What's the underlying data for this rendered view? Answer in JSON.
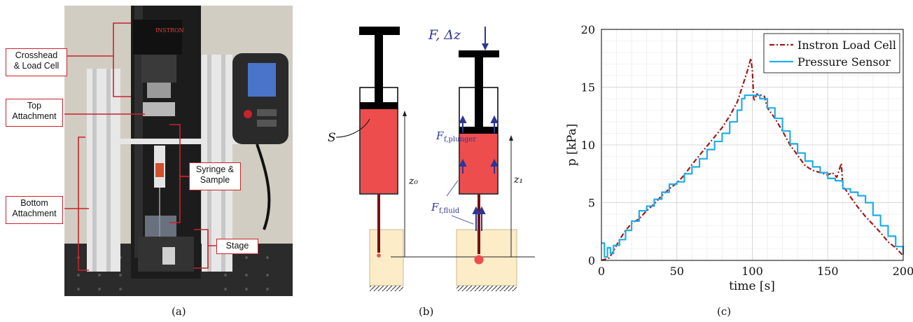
{
  "panel_a": {
    "labels": {
      "crosshead": [
        "Crosshead",
        "& Load Cell"
      ],
      "top": [
        "Top",
        "Attachment"
      ],
      "syringe": [
        "Syringe &",
        "Sample"
      ],
      "bottom": [
        "Bottom",
        "Attachment"
      ],
      "stage": "Stage"
    },
    "brand": "INSTRON",
    "caption": "(a)"
  },
  "panel_b": {
    "force_label": "F, Δz",
    "s_label": "S",
    "z0": "z₀",
    "z1": "z₁",
    "f_plunger": "F",
    "f_plunger_sub": "f,plunger",
    "f_fluid": "F",
    "f_fluid_sub": "f,fluid",
    "caption": "(b)"
  },
  "panel_c": {
    "caption": "(c)"
  },
  "chart_data": {
    "type": "line",
    "xlabel": "time [s]",
    "ylabel": "p [kPa]",
    "xlim": [
      0,
      200
    ],
    "ylim": [
      0,
      20
    ],
    "xticks": [
      0,
      50,
      100,
      150,
      200
    ],
    "yticks": [
      0,
      5,
      10,
      15,
      20
    ],
    "grid": true,
    "legend": "top-right",
    "series": [
      {
        "name": "Instron Load Cell",
        "color": "#a01919",
        "style": "dash-dot",
        "x": [
          0,
          5,
          8,
          12,
          16,
          20,
          25,
          30,
          35,
          40,
          45,
          50,
          55,
          60,
          65,
          70,
          75,
          80,
          85,
          90,
          93,
          96,
          98,
          99,
          100,
          101,
          103,
          106,
          108,
          110,
          115,
          120,
          125,
          130,
          135,
          140,
          145,
          150,
          153,
          156,
          158,
          159,
          160,
          162,
          165,
          170,
          175,
          180,
          185,
          190,
          195,
          200
        ],
        "y": [
          0,
          0.2,
          0.8,
          1.8,
          2.6,
          3.2,
          3.6,
          4.3,
          4.9,
          5.6,
          6.2,
          6.7,
          7.4,
          8.3,
          9.1,
          9.9,
          10.7,
          11.5,
          12.5,
          13.7,
          14.9,
          16.1,
          17.0,
          17.5,
          16.5,
          13.8,
          14.4,
          14.3,
          14.2,
          13.2,
          12.3,
          11.2,
          10.0,
          9.1,
          8.2,
          7.8,
          7.6,
          7.4,
          7.6,
          7.2,
          8.0,
          8.4,
          6.4,
          6.1,
          5.5,
          4.6,
          3.8,
          3.1,
          2.4,
          1.6,
          1.1,
          0.4
        ]
      },
      {
        "name": "Pressure Sensor",
        "color": "#1eaee8",
        "style": "solid",
        "x": [
          0,
          2,
          4,
          6,
          8,
          12,
          16,
          20,
          25,
          30,
          35,
          40,
          45,
          50,
          55,
          60,
          65,
          70,
          75,
          80,
          85,
          90,
          93,
          95,
          100,
          105,
          110,
          115,
          120,
          125,
          130,
          135,
          140,
          145,
          150,
          155,
          160,
          165,
          170,
          175,
          180,
          185,
          190,
          195,
          200
        ],
        "y": [
          1.5,
          0.3,
          1.1,
          0.6,
          1.3,
          1.8,
          2.6,
          3.4,
          4.3,
          4.7,
          5.3,
          5.9,
          6.6,
          6.8,
          7.5,
          8.1,
          8.8,
          9.6,
          10.3,
          11.0,
          12.0,
          13.0,
          14.0,
          14.3,
          14.3,
          14.0,
          13.2,
          12.3,
          11.2,
          10.1,
          9.3,
          8.6,
          8.1,
          7.6,
          7.1,
          6.9,
          6.2,
          5.9,
          5.6,
          5.0,
          3.9,
          3.0,
          2.1,
          1.2,
          0.5
        ]
      }
    ]
  }
}
